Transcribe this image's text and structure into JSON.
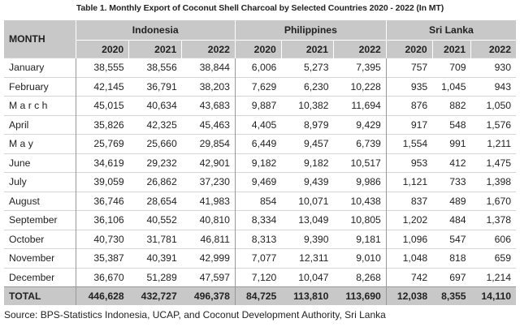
{
  "title": "Table 1. Monthly Export of Coconut Shell Charcoal by Selected Countries 2020 - 2022 (In MT)",
  "header": {
    "month": "MONTH",
    "groups": [
      "Indonesia",
      "Philippines",
      "Sri Lanka"
    ],
    "years": [
      "2020",
      "2021",
      "2022"
    ]
  },
  "rows": [
    {
      "month": "January",
      "values": [
        "38,555",
        "38,556",
        "38,844",
        "6,006",
        "5,273",
        "7,395",
        "757",
        "709",
        "930"
      ]
    },
    {
      "month": "February",
      "values": [
        "42,145",
        "36,791",
        "38,203",
        "7,629",
        "6,230",
        "10,228",
        "935",
        "1,045",
        "943"
      ]
    },
    {
      "month": "M a r c h",
      "values": [
        "45,015",
        "40,634",
        "43,683",
        "9,887",
        "10,382",
        "11,694",
        "876",
        "882",
        "1,050"
      ]
    },
    {
      "month": "April",
      "values": [
        "35,826",
        "42,325",
        "45,463",
        "4,405",
        "8,979",
        "9,429",
        "917",
        "548",
        "1,576"
      ]
    },
    {
      "month": "M a y",
      "values": [
        "25,769",
        "25,660",
        "29,854",
        "6,449",
        "9,457",
        "6,739",
        "1,554",
        "991",
        "1,211"
      ]
    },
    {
      "month": "June",
      "values": [
        "34,619",
        "29,232",
        "42,901",
        "9,182",
        "9,182",
        "10,517",
        "953",
        "412",
        "1,475"
      ]
    },
    {
      "month": "July",
      "values": [
        "39,059",
        "26,862",
        "37,230",
        "9,469",
        "9,439",
        "9,986",
        "1,121",
        "733",
        "1,398"
      ]
    },
    {
      "month": "August",
      "values": [
        "36,746",
        "28,654",
        "41,983",
        "854",
        "10,071",
        "10,438",
        "837",
        "489",
        "1,670"
      ]
    },
    {
      "month": "September",
      "values": [
        "36,106",
        "40,552",
        "40,810",
        "8,334",
        "13,049",
        "10,805",
        "1,202",
        "484",
        "1,378"
      ]
    },
    {
      "month": "October",
      "values": [
        "40,730",
        "31,781",
        "46,811",
        "8,313",
        "9,390",
        "9,181",
        "1,096",
        "547",
        "606"
      ]
    },
    {
      "month": "November",
      "values": [
        "35,387",
        "40,391",
        "42,999",
        "7,077",
        "12,311",
        "9,010",
        "1,048",
        "818",
        "659"
      ]
    },
    {
      "month": "December",
      "values": [
        "36,670",
        "51,289",
        "47,597",
        "7,120",
        "10,047",
        "8,268",
        "742",
        "697",
        "1,214"
      ]
    }
  ],
  "total": {
    "label": "TOTAL",
    "values": [
      "446,628",
      "432,727",
      "496,378",
      "84,725",
      "113,810",
      "113,690",
      "12,038",
      "8,355",
      "14,110"
    ]
  },
  "source": "Source: BPS-Statistics Indonesia, UCAP, and Coconut Development Authority, Sri Lanka"
}
